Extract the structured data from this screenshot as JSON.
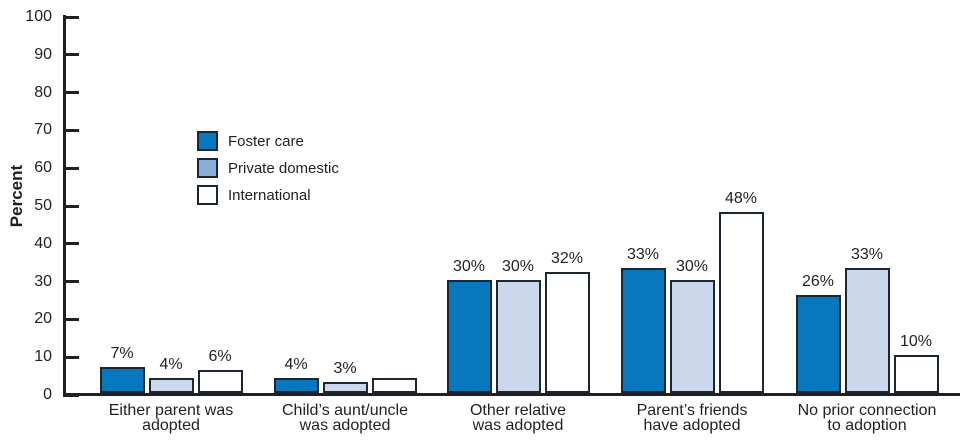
{
  "chart_data": {
    "type": "bar",
    "title": "",
    "ylabel": "Percent",
    "xlabel": "",
    "ylim": [
      0,
      100
    ],
    "ytick_step": 10,
    "yticks": [
      100,
      90,
      80,
      70,
      60,
      50,
      40,
      30,
      20,
      10,
      0
    ],
    "grid": false,
    "legend_position": "inside-upper-left",
    "categories": [
      [
        "Either parent was",
        "adopted"
      ],
      [
        "Child’s aunt/uncle",
        "was adopted"
      ],
      [
        "Other relative",
        "was adopted"
      ],
      [
        "Parent’s friends",
        "have adopted"
      ],
      [
        "No prior connection",
        "to adoption"
      ]
    ],
    "series": [
      {
        "name": "Foster care",
        "fill": "#0878be",
        "swatch": "#0878be",
        "values": [
          7,
          4,
          30,
          33,
          26
        ],
        "data_labels": [
          "7%",
          "4%",
          "30%",
          "33%",
          "26%"
        ]
      },
      {
        "name": "Private domestic",
        "fill": "#cbd8eb",
        "swatch": "#8aaedb",
        "values": [
          4,
          3,
          30,
          30,
          33
        ],
        "data_labels": [
          "4%",
          "3%",
          "30%",
          "30%",
          "33%"
        ]
      },
      {
        "name": "International",
        "fill": "#ffffff",
        "swatch": "#ffffff",
        "values": [
          6,
          4,
          32,
          48,
          10
        ],
        "data_labels": [
          "6%",
          "",
          "32%",
          "48%",
          "10%"
        ]
      }
    ]
  },
  "colors": {
    "background": "#ffffff",
    "axis": "#231f20",
    "text": "#231f20",
    "bar_border": "#1c2733"
  }
}
